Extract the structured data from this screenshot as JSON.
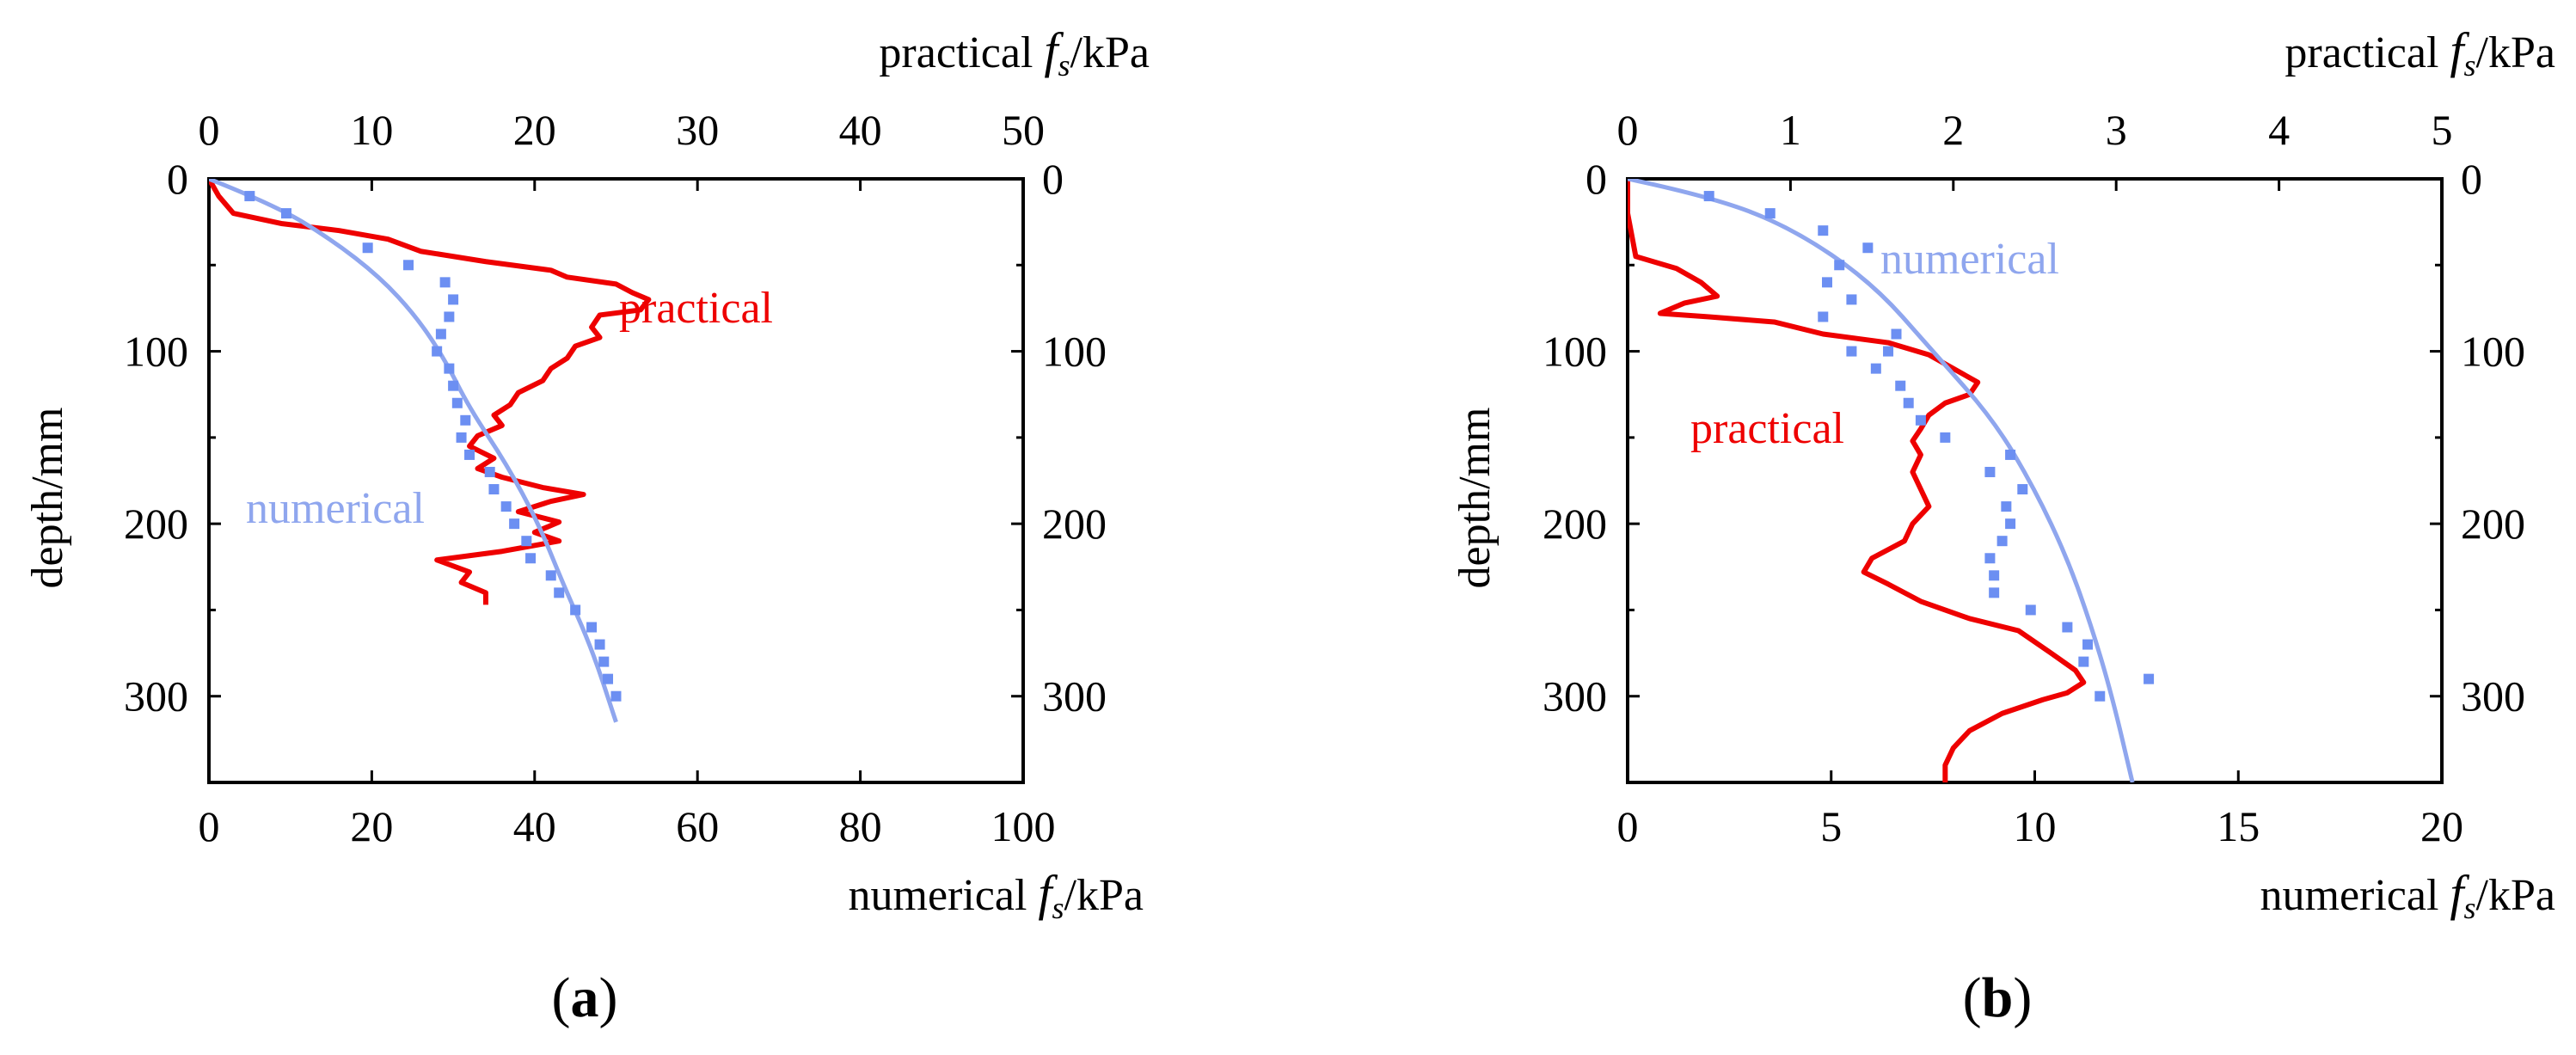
{
  "colors": {
    "practical": "#ee0000",
    "numerical_curve": "#8fa6ee",
    "numerical_points": "#6c8ff2"
  },
  "chart_data": [
    {
      "type": "line",
      "panel_label": "a",
      "x_top": {
        "label_prefix": "practical ",
        "label_symbol": "f",
        "label_sub": "s",
        "label_suffix": "/kPa",
        "range": [
          0,
          50
        ],
        "ticks": [
          "0",
          "10",
          "20",
          "30",
          "40",
          "50"
        ]
      },
      "x_bottom": {
        "label_prefix": "numerical ",
        "label_symbol": "f",
        "label_sub": "s",
        "label_suffix": "/kPa",
        "range": [
          0,
          100
        ],
        "ticks": [
          "0",
          "20",
          "40",
          "60",
          "80",
          "100"
        ]
      },
      "y": {
        "label": "depth/mm",
        "range": [
          0,
          350
        ],
        "inverted": true,
        "ticks": [
          "0",
          "100",
          "200",
          "300"
        ]
      },
      "annotations": [
        "practical",
        "numerical"
      ],
      "series": [
        {
          "name": "practical",
          "axis": "top",
          "style": "line",
          "points": [
            [
              0,
              0
            ],
            [
              0.6,
              10
            ],
            [
              1.5,
              20
            ],
            [
              4.5,
              26
            ],
            [
              8,
              30
            ],
            [
              11,
              35
            ],
            [
              13,
              42
            ],
            [
              17,
              48
            ],
            [
              21,
              53
            ],
            [
              22,
              57
            ],
            [
              25,
              61
            ],
            [
              26,
              66
            ],
            [
              27,
              70
            ],
            [
              26.5,
              76
            ],
            [
              24,
              79
            ],
            [
              23.5,
              86
            ],
            [
              24,
              92
            ],
            [
              22.5,
              97
            ],
            [
              22,
              104
            ],
            [
              21,
              110
            ],
            [
              20.5,
              117
            ],
            [
              19,
              124
            ],
            [
              18.5,
              131
            ],
            [
              17.5,
              137
            ],
            [
              18,
              143
            ],
            [
              16.5,
              149
            ],
            [
              16,
              155
            ],
            [
              17.5,
              162
            ],
            [
              16.5,
              168
            ],
            [
              18,
              173
            ],
            [
              20.5,
              179
            ],
            [
              23,
              183
            ],
            [
              21,
              187
            ],
            [
              19,
              193
            ],
            [
              21.5,
              199
            ],
            [
              20,
              205
            ],
            [
              21.5,
              210
            ],
            [
              18,
              216
            ],
            [
              14,
              221
            ],
            [
              16,
              228
            ],
            [
              15.5,
              234
            ],
            [
              17,
              240
            ],
            [
              17,
              247
            ]
          ]
        },
        {
          "name": "numerical",
          "axis": "bottom",
          "style": "curve",
          "points": [
            [
              0,
              0
            ],
            [
              8,
              15
            ],
            [
              15,
              35
            ],
            [
              21,
              57
            ],
            [
              25.5,
              80
            ],
            [
              29,
              105
            ],
            [
              32,
              133
            ],
            [
              36.5,
              165
            ],
            [
              40.5,
              200
            ],
            [
              43.5,
              235
            ],
            [
              47,
              272
            ],
            [
              50,
              315
            ]
          ]
        },
        {
          "name": "numerical",
          "axis": "bottom",
          "style": "points",
          "points": [
            [
              5,
              10
            ],
            [
              9.5,
              20
            ],
            [
              19.5,
              40
            ],
            [
              24.5,
              50
            ],
            [
              29,
              60
            ],
            [
              30,
              70
            ],
            [
              29.5,
              80
            ],
            [
              28.5,
              90
            ],
            [
              28,
              100
            ],
            [
              29.5,
              110
            ],
            [
              30,
              120
            ],
            [
              30.5,
              130
            ],
            [
              31.5,
              140
            ],
            [
              31,
              150
            ],
            [
              32,
              160
            ],
            [
              34.5,
              170
            ],
            [
              35,
              180
            ],
            [
              36.5,
              190
            ],
            [
              37.5,
              200
            ],
            [
              39,
              210
            ],
            [
              39.5,
              220
            ],
            [
              42,
              230
            ],
            [
              43,
              240
            ],
            [
              45,
              250
            ],
            [
              47,
              260
            ],
            [
              48,
              270
            ],
            [
              48.5,
              280
            ],
            [
              49,
              290
            ],
            [
              50,
              300
            ]
          ]
        }
      ]
    },
    {
      "type": "line",
      "panel_label": "b",
      "x_top": {
        "label_prefix": "practical ",
        "label_symbol": "f",
        "label_sub": "s",
        "label_suffix": "/kPa",
        "range": [
          0,
          5
        ],
        "ticks": [
          "0",
          "1",
          "2",
          "3",
          "4",
          "5"
        ]
      },
      "x_bottom": {
        "label_prefix": "numerical ",
        "label_symbol": "f",
        "label_sub": "s",
        "label_suffix": "/kPa",
        "range": [
          0,
          20
        ],
        "ticks": [
          "0",
          "5",
          "10",
          "15",
          "20"
        ]
      },
      "y": {
        "label": "depth/mm",
        "range": [
          0,
          350
        ],
        "inverted": true,
        "ticks": [
          "0",
          "100",
          "200",
          "300"
        ]
      },
      "annotations": [
        "numerical",
        "practical"
      ],
      "series": [
        {
          "name": "practical",
          "axis": "top",
          "style": "line",
          "points": [
            [
              0,
              0
            ],
            [
              0,
              20
            ],
            [
              0.05,
              45
            ],
            [
              0.3,
              52
            ],
            [
              0.45,
              60
            ],
            [
              0.55,
              68
            ],
            [
              0.35,
              72
            ],
            [
              0.2,
              78
            ],
            [
              0.5,
              80
            ],
            [
              0.9,
              83
            ],
            [
              1.2,
              90
            ],
            [
              1.6,
              95
            ],
            [
              1.85,
              102
            ],
            [
              2.0,
              110
            ],
            [
              2.15,
              118
            ],
            [
              2.1,
              125
            ],
            [
              1.95,
              130
            ],
            [
              1.85,
              137
            ],
            [
              1.8,
              145
            ],
            [
              1.75,
              152
            ],
            [
              1.8,
              160
            ],
            [
              1.75,
              170
            ],
            [
              1.8,
              180
            ],
            [
              1.85,
              190
            ],
            [
              1.75,
              200
            ],
            [
              1.7,
              210
            ],
            [
              1.5,
              220
            ],
            [
              1.45,
              228
            ],
            [
              1.6,
              235
            ],
            [
              1.8,
              245
            ],
            [
              2.1,
              255
            ],
            [
              2.4,
              262
            ],
            [
              2.6,
              275
            ],
            [
              2.75,
              285
            ],
            [
              2.8,
              292
            ],
            [
              2.7,
              298
            ],
            [
              2.55,
              302
            ],
            [
              2.3,
              310
            ],
            [
              2.1,
              320
            ],
            [
              2.0,
              330
            ],
            [
              1.95,
              340
            ],
            [
              1.95,
              350
            ]
          ]
        },
        {
          "name": "numerical",
          "axis": "bottom",
          "style": "curve",
          "points": [
            [
              0,
              0
            ],
            [
              2,
              10
            ],
            [
              4,
              28
            ],
            [
              6,
              60
            ],
            [
              7.5,
              100
            ],
            [
              9,
              140
            ],
            [
              10,
              180
            ],
            [
              10.8,
              220
            ],
            [
              11.4,
              260
            ],
            [
              11.9,
              300
            ],
            [
              12.4,
              350
            ]
          ]
        },
        {
          "name": "numerical",
          "axis": "bottom",
          "style": "points",
          "points": [
            [
              2,
              10
            ],
            [
              3.5,
              20
            ],
            [
              4.8,
              30
            ],
            [
              5.2,
              50
            ],
            [
              5.9,
              40
            ],
            [
              4.9,
              60
            ],
            [
              5.5,
              70
            ],
            [
              4.8,
              80
            ],
            [
              6.6,
              90
            ],
            [
              6.4,
              100
            ],
            [
              5.5,
              100
            ],
            [
              6.1,
              110
            ],
            [
              6.7,
              120
            ],
            [
              6.9,
              130
            ],
            [
              7.2,
              140
            ],
            [
              7.8,
              150
            ],
            [
              9.4,
              160
            ],
            [
              8.9,
              170
            ],
            [
              9.7,
              180
            ],
            [
              9.3,
              190
            ],
            [
              9.4,
              200
            ],
            [
              9.2,
              210
            ],
            [
              8.9,
              220
            ],
            [
              9.0,
              230
            ],
            [
              9.0,
              240
            ],
            [
              9.9,
              250
            ],
            [
              10.8,
              260
            ],
            [
              11.3,
              270
            ],
            [
              11.2,
              280
            ],
            [
              12.8,
              290
            ],
            [
              11.6,
              300
            ]
          ]
        }
      ]
    }
  ]
}
